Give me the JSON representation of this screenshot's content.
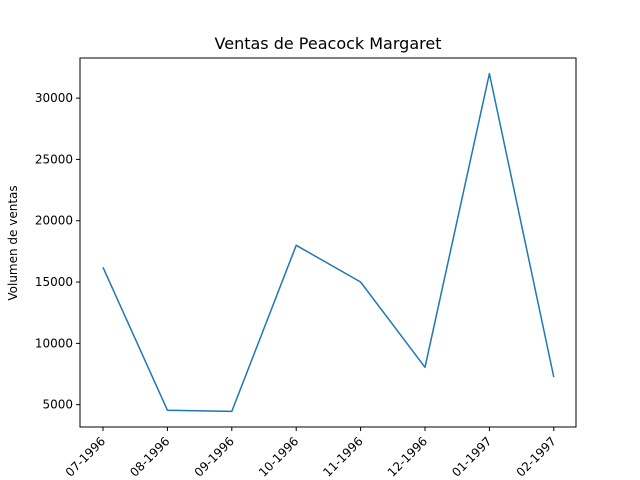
{
  "chart_data": {
    "type": "line",
    "title": "Ventas de Peacock Margaret",
    "xlabel": "",
    "ylabel": "Volumen de ventas",
    "categories": [
      "07-1996",
      "08-1996",
      "09-1996",
      "10-1996",
      "11-1996",
      "12-1996",
      "01-1997",
      "02-1997"
    ],
    "series": [
      {
        "values": [
          16200,
          4550,
          4450,
          18000,
          15000,
          8050,
          32000,
          7250
        ],
        "color": "#1f77b4"
      }
    ],
    "yticks": [
      5000,
      10000,
      15000,
      20000,
      25000,
      30000
    ],
    "ylim": [
      3180,
      33270
    ],
    "grid": false
  }
}
